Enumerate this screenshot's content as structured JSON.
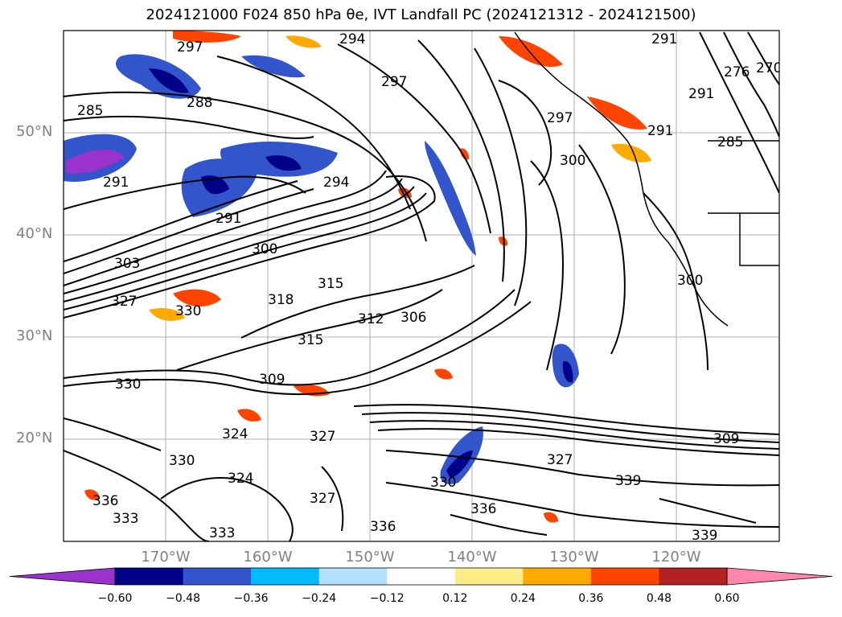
{
  "title": "2024121000 F024 850 hPa θe, IVT Landfall PC (2024121312 - 2024121500)",
  "lat_labels": [
    "50°N",
    "40°N",
    "30°N",
    "20°N"
  ],
  "lon_labels": [
    "170°W",
    "160°W",
    "150°W",
    "140°W",
    "130°W",
    "120°W"
  ],
  "colorbar": {
    "colors": [
      "#9933cc",
      "#000088",
      "#3355cc",
      "#00bbff",
      "#b3e0ff",
      "#ffffff",
      "#ffee88",
      "#ffaa00",
      "#ff4400",
      "#b22222",
      "#ff88aa"
    ],
    "ticks": [
      "−0.60",
      "−0.48",
      "−0.36",
      "−0.24",
      "−0.12",
      "0.12",
      "0.24",
      "0.36",
      "0.48",
      "0.60"
    ]
  },
  "contour_labels": [
    "297",
    "294",
    "297",
    "291",
    "285",
    "288",
    "291",
    "294",
    "291",
    "300",
    "303",
    "327",
    "330",
    "318",
    "315",
    "315",
    "312",
    "306",
    "309",
    "330",
    "324",
    "327",
    "330",
    "324",
    "336",
    "333",
    "333",
    "336",
    "330",
    "327",
    "336",
    "339",
    "339",
    "309",
    "327",
    "291",
    "276",
    "270",
    "300",
    "297",
    "291",
    "285",
    "300"
  ]
}
